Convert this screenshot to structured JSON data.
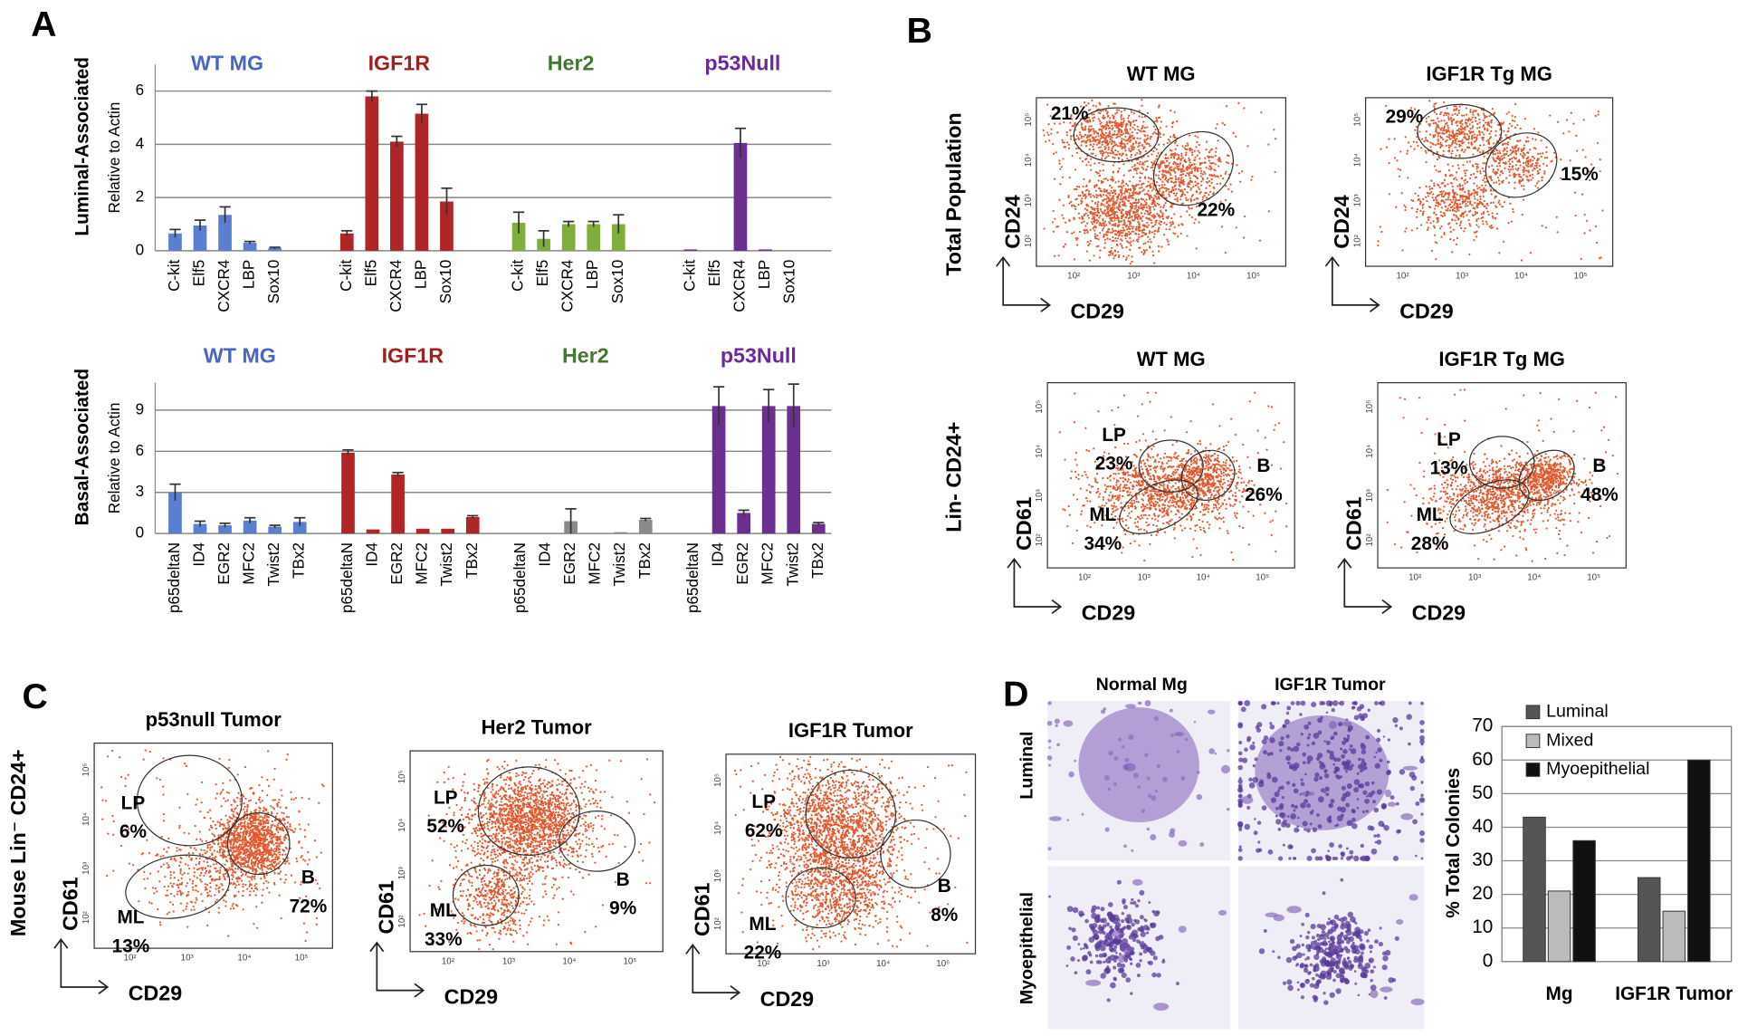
{
  "panel_labels": [
    "A",
    "B",
    "C",
    "D"
  ],
  "chart_data": [
    {
      "type": "grouped_bar",
      "section_label": "Luminal-Associated",
      "ylabel": "Relative to Actin",
      "ylim": [
        0,
        7
      ],
      "yticks": [
        0,
        2,
        4,
        6
      ],
      "grid": true,
      "series": [
        {
          "name": "WT MG",
          "color": "#5b7fd0",
          "label_color": "#4a66c4",
          "categories": [
            "C-kit",
            "Elf5",
            "CXCR4",
            "LBP",
            "Sox10"
          ],
          "values": [
            0.65,
            0.95,
            1.35,
            0.3,
            0.1
          ],
          "errors": [
            0.15,
            0.2,
            0.3,
            0.05,
            0.03
          ]
        },
        {
          "name": "IGF1R",
          "color": "#b02626",
          "label_color": "#a02020",
          "categories": [
            "C-kit",
            "Elf5",
            "CXCR4",
            "LBP",
            "Sox10"
          ],
          "values": [
            0.65,
            5.8,
            4.1,
            5.15,
            1.85
          ],
          "errors": [
            0.1,
            0.2,
            0.2,
            0.35,
            0.5
          ]
        },
        {
          "name": "Her2",
          "color": "#7fae3d",
          "label_color": "#3f7a2a",
          "categories": [
            "C-kit",
            "Elf5",
            "CXCR4",
            "LBP",
            "Sox10"
          ],
          "values": [
            1.05,
            0.45,
            1.0,
            1.0,
            1.0
          ],
          "errors": [
            0.4,
            0.3,
            0.1,
            0.1,
            0.35
          ]
        },
        {
          "name": "p53Null",
          "color": "#6b2f8f",
          "label_color": "#6a2a9a",
          "categories": [
            "C-kit",
            "Elf5",
            "CXCR4",
            "LBP",
            "Sox10"
          ],
          "values": [
            0.05,
            0,
            4.05,
            0.05,
            0
          ],
          "errors": [
            null,
            null,
            0.55,
            null,
            null
          ]
        }
      ]
    },
    {
      "type": "grouped_bar",
      "section_label": "Basal-Associated",
      "ylabel": "Relative to Actin",
      "ylim": [
        0,
        11
      ],
      "yticks": [
        0,
        3,
        6,
        9
      ],
      "grid": true,
      "series": [
        {
          "name": "WT MG",
          "color": "#5b7fd0",
          "label_color": "#4a66c4",
          "categories": [
            "p65deltaN",
            "ID4",
            "EGR2",
            "MFC2",
            "Twist2",
            "TBx2"
          ],
          "values": [
            3.0,
            0.7,
            0.6,
            0.95,
            0.5,
            0.85
          ],
          "errors": [
            0.6,
            0.2,
            0.15,
            0.2,
            0.1,
            0.3
          ]
        },
        {
          "name": "IGF1R",
          "color": "#b02626",
          "label_color": "#a02020",
          "categories": [
            "p65deltaN",
            "ID4",
            "EGR2",
            "MFC2",
            "Twist2",
            "TBx2"
          ],
          "values": [
            5.9,
            0.3,
            4.3,
            0.35,
            0.35,
            1.2
          ],
          "errors": [
            0.2,
            null,
            0.15,
            null,
            null,
            0.1
          ]
        },
        {
          "name": "Her2",
          "color": "#8a8a8a",
          "label_color": "#3f7a2a",
          "categories": [
            "p65deltaN",
            "ID4",
            "EGR2",
            "MFC2",
            "Twist2",
            "TBx2"
          ],
          "values": [
            0,
            0,
            0.9,
            0,
            0.1,
            1.0
          ],
          "errors": [
            null,
            null,
            0.9,
            null,
            null,
            0.1
          ]
        },
        {
          "name": "p53Null",
          "color": "#6b2f8f",
          "label_color": "#6a2a9a",
          "categories": [
            "p65deltaN",
            "ID4",
            "EGR2",
            "MFC2",
            "Twist2",
            "TBx2"
          ],
          "values": [
            0,
            9.3,
            1.5,
            9.3,
            9.3,
            0.7
          ],
          "errors": [
            null,
            1.4,
            0.2,
            1.2,
            1.6,
            0.1
          ]
        }
      ]
    },
    {
      "type": "bar",
      "ylabel": "% Total Colonies",
      "categories": [
        "Mg",
        "IGF1R Tumor"
      ],
      "ylim": [
        0,
        70
      ],
      "yticks": [
        0,
        10,
        20,
        30,
        40,
        50,
        60,
        70
      ],
      "grid": true,
      "legend": "top-left",
      "series": [
        {
          "name": "Luminal",
          "color": "#555555",
          "values": [
            43,
            25
          ]
        },
        {
          "name": "Mixed",
          "color": "#bbbbbb",
          "values": [
            21,
            15
          ]
        },
        {
          "name": "Myoepithelial",
          "color": "#111111",
          "values": [
            36,
            60
          ]
        }
      ]
    }
  ],
  "flow": {
    "log_ticks": [
      "10²",
      "10³",
      "10⁴",
      "10⁵"
    ],
    "row_labels": [
      "Total Population",
      "Lin- CD24+",
      "Mouse Lin⁻ CD24+"
    ],
    "plots": [
      {
        "title": "WT MG",
        "y_label": "CD24",
        "x_label": "CD29",
        "gates": [
          {
            "percent": "21%"
          },
          {
            "percent": "22%"
          }
        ]
      },
      {
        "title": "IGF1R Tg MG",
        "y_label": "CD24",
        "x_label": "CD29",
        "gates": [
          {
            "percent": "29%"
          },
          {
            "percent": "15%"
          }
        ]
      },
      {
        "title": "WT MG",
        "y_label": "CD61",
        "x_label": "CD29",
        "gates": [
          {
            "name": "LP",
            "percent": "23%"
          },
          {
            "name": "B",
            "percent": "26%"
          },
          {
            "name": "ML",
            "percent": "34%"
          }
        ]
      },
      {
        "title": "IGF1R Tg MG",
        "y_label": "CD61",
        "x_label": "CD29",
        "gates": [
          {
            "name": "LP",
            "percent": "13%"
          },
          {
            "name": "B",
            "percent": "48%"
          },
          {
            "name": "ML",
            "percent": "28%"
          }
        ]
      },
      {
        "title": "p53null Tumor",
        "y_label": "CD61",
        "x_label": "CD29",
        "gates": [
          {
            "name": "LP",
            "percent": "6%"
          },
          {
            "name": "B",
            "percent": "72%"
          },
          {
            "name": "ML",
            "percent": "13%"
          }
        ]
      },
      {
        "title": "Her2 Tumor",
        "y_label": "CD61",
        "x_label": "CD29",
        "gates": [
          {
            "name": "LP",
            "percent": "52%"
          },
          {
            "name": "B",
            "percent": "9%"
          },
          {
            "name": "ML",
            "percent": "33%"
          }
        ]
      },
      {
        "title": "IGF1R Tumor",
        "y_label": "CD61",
        "x_label": "CD29",
        "gates": [
          {
            "name": "LP",
            "percent": "62%"
          },
          {
            "name": "B",
            "percent": "8%"
          },
          {
            "name": "ML",
            "percent": "22%"
          }
        ]
      }
    ]
  },
  "images": {
    "columns": [
      "Normal Mg",
      "IGF1R Tumor"
    ],
    "rows": [
      "Luminal",
      "Myoepithelial"
    ]
  }
}
